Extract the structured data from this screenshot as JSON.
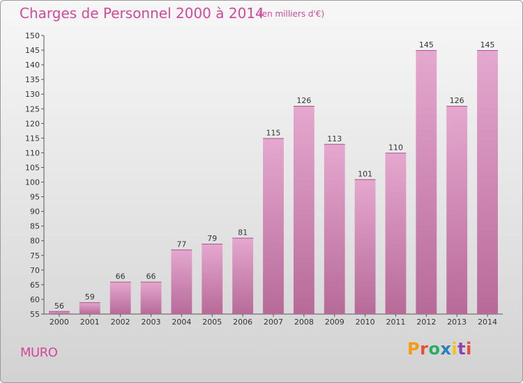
{
  "header": {
    "title": "Charges de Personnel 2000 à 2014",
    "subtitle": "(en milliers d'€)"
  },
  "commune": "MURO",
  "logo": {
    "letters": [
      "P",
      "r",
      "o",
      "x",
      "i",
      "t",
      "i"
    ],
    "colors": [
      "#f39c12",
      "#e74c3c",
      "#27ae60",
      "#2980b9",
      "#f1c40f",
      "#8e44ad",
      "#e74c3c"
    ]
  },
  "colors": {
    "bar_top": "#e5a8cf",
    "bar_bottom": "#b76a98",
    "accent": "#d2499a",
    "axis": "#555555"
  },
  "chart_data": {
    "type": "bar",
    "categories": [
      "2000",
      "2001",
      "2002",
      "2003",
      "2004",
      "2005",
      "2006",
      "2007",
      "2008",
      "2009",
      "2010",
      "2011",
      "2012",
      "2013",
      "2014"
    ],
    "values": [
      56,
      59,
      66,
      66,
      77,
      79,
      81,
      115,
      126,
      113,
      101,
      110,
      145,
      126,
      145
    ],
    "title": "Charges de Personnel 2000 à 2014",
    "subtitle": "(en milliers d'€)",
    "ylim": [
      55,
      150
    ],
    "yticks": [
      55,
      60,
      65,
      70,
      75,
      80,
      85,
      90,
      95,
      100,
      105,
      110,
      115,
      120,
      125,
      130,
      135,
      140,
      145,
      150
    ],
    "grid": false,
    "data_labels": true
  }
}
